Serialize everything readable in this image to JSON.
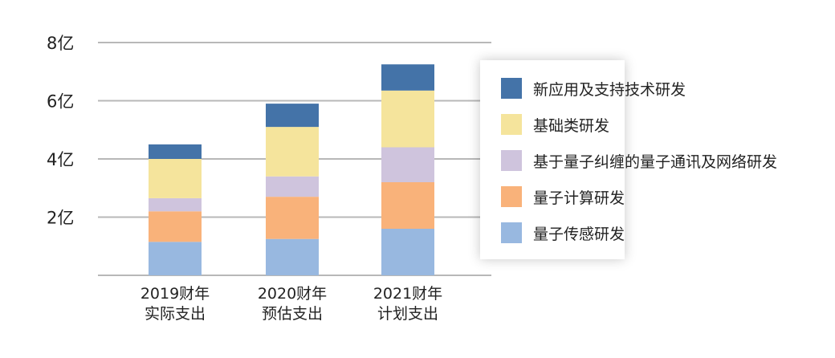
{
  "chart_data": {
    "type": "bar",
    "stacked": true,
    "categories": [
      [
        "2019财年",
        "实际支出"
      ],
      [
        "2020财年",
        "预估支出"
      ],
      [
        "2021财年",
        "计划支出"
      ]
    ],
    "series": [
      {
        "name": "量子传感研发",
        "color": "#98b8e0",
        "values": [
          1.15,
          1.25,
          1.6
        ]
      },
      {
        "name": "量子计算研发",
        "color": "#f9b27a",
        "values": [
          1.05,
          1.45,
          1.6
        ]
      },
      {
        "name": "基于量子纠缠的量子通讯及网络研发",
        "color": "#cfc4dd",
        "values": [
          0.45,
          0.7,
          1.2
        ]
      },
      {
        "name": "基础类研发",
        "color": "#f5e49c",
        "values": [
          1.35,
          1.7,
          1.95
        ]
      },
      {
        "name": "新应用及支持技术研发",
        "color": "#4473a8",
        "values": [
          0.5,
          0.8,
          0.9
        ]
      }
    ],
    "yticks": [
      "2亿",
      "4亿",
      "6亿",
      "8亿"
    ],
    "ytick_values": [
      2,
      4,
      6,
      8
    ],
    "ylim": [
      0,
      8
    ],
    "grid": true,
    "legend_position": "right"
  }
}
